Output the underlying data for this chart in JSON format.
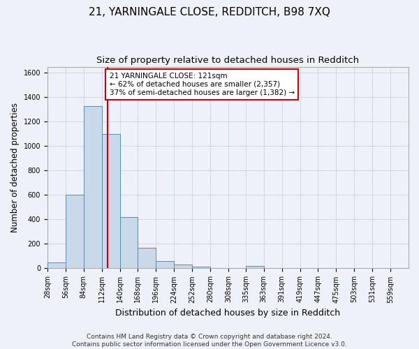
{
  "title1": "21, YARNINGALE CLOSE, REDDITCH, B98 7XQ",
  "title2": "Size of property relative to detached houses in Redditch",
  "xlabel": "Distribution of detached houses by size in Redditch",
  "ylabel": "Number of detached properties",
  "footer": "Contains HM Land Registry data © Crown copyright and database right 2024.\nContains public sector information licensed under the Open Government Licence v3.0.",
  "bar_edges": [
    28,
    56,
    84,
    112,
    140,
    168,
    196,
    224,
    252,
    280,
    308,
    335,
    363,
    391,
    419,
    447,
    475,
    503,
    531,
    559,
    587
  ],
  "bar_heights": [
    50,
    600,
    1330,
    1100,
    420,
    170,
    60,
    30,
    15,
    0,
    0,
    20,
    0,
    0,
    0,
    0,
    0,
    0,
    0,
    0
  ],
  "bar_color": "#c9d9ea",
  "bar_edge_color": "#5a8ab0",
  "grid_color": "#d0d8e8",
  "background_color": "#eef2f8",
  "property_size": 121,
  "annotation_text": "21 YARNINGALE CLOSE: 121sqm\n← 62% of detached houses are smaller (2,357)\n37% of semi-detached houses are larger (1,382) →",
  "annotation_box_color": "#ffffff",
  "annotation_box_edge": "#cc0000",
  "vline_color": "#cc0000",
  "ylim": [
    0,
    1650
  ],
  "yticks": [
    0,
    200,
    400,
    600,
    800,
    1000,
    1200,
    1400,
    1600
  ],
  "title1_fontsize": 11,
  "title2_fontsize": 9.5,
  "xlabel_fontsize": 9,
  "ylabel_fontsize": 8.5,
  "tick_fontsize": 7,
  "footer_fontsize": 6.5,
  "annotation_fontsize": 7.5
}
